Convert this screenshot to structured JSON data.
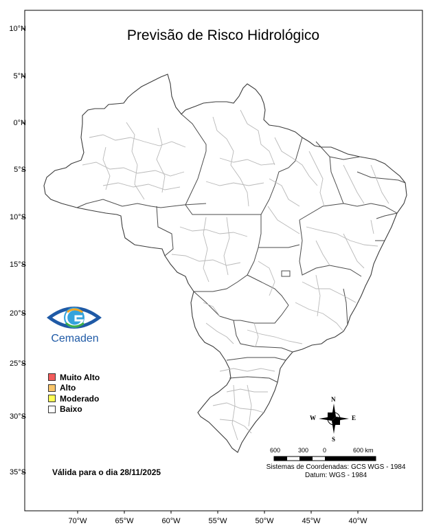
{
  "title": "Previsão de Risco Hidrológico",
  "latitude_labels": [
    "10°N",
    "5°N",
    "0°N",
    "5°S",
    "10°S",
    "15°S",
    "20°S",
    "25°S",
    "30°S",
    "35°S"
  ],
  "longitude_labels": [
    "70°W",
    "65°W",
    "60°W",
    "55°W",
    "50°W",
    "45°W",
    "40°W"
  ],
  "logo": {
    "text": "Cemaden",
    "colors": [
      "#1f5aa6",
      "#35a3dc",
      "#f5a623",
      "#3cae49"
    ]
  },
  "legend": [
    {
      "label": "Muito Alto",
      "color": "#f25c5c"
    },
    {
      "label": "Alto",
      "color": "#f9c56a"
    },
    {
      "label": "Moderado",
      "color": "#ffff55"
    },
    {
      "label": "Baixo",
      "color": "#ffffff"
    }
  ],
  "validity": "Válida para o dia 28/11/2025",
  "compass": {
    "n": "N",
    "s": "S",
    "e": "E",
    "w": "W"
  },
  "scale_bar": {
    "labels": [
      "600",
      "300",
      "0",
      "600 km"
    ]
  },
  "coordinate_system": {
    "line1": "Sistemas de Coordenadas: GCS WGS - 1984",
    "line2": "Datum: WGS - 1984"
  },
  "risk_by_area": "Baixo"
}
